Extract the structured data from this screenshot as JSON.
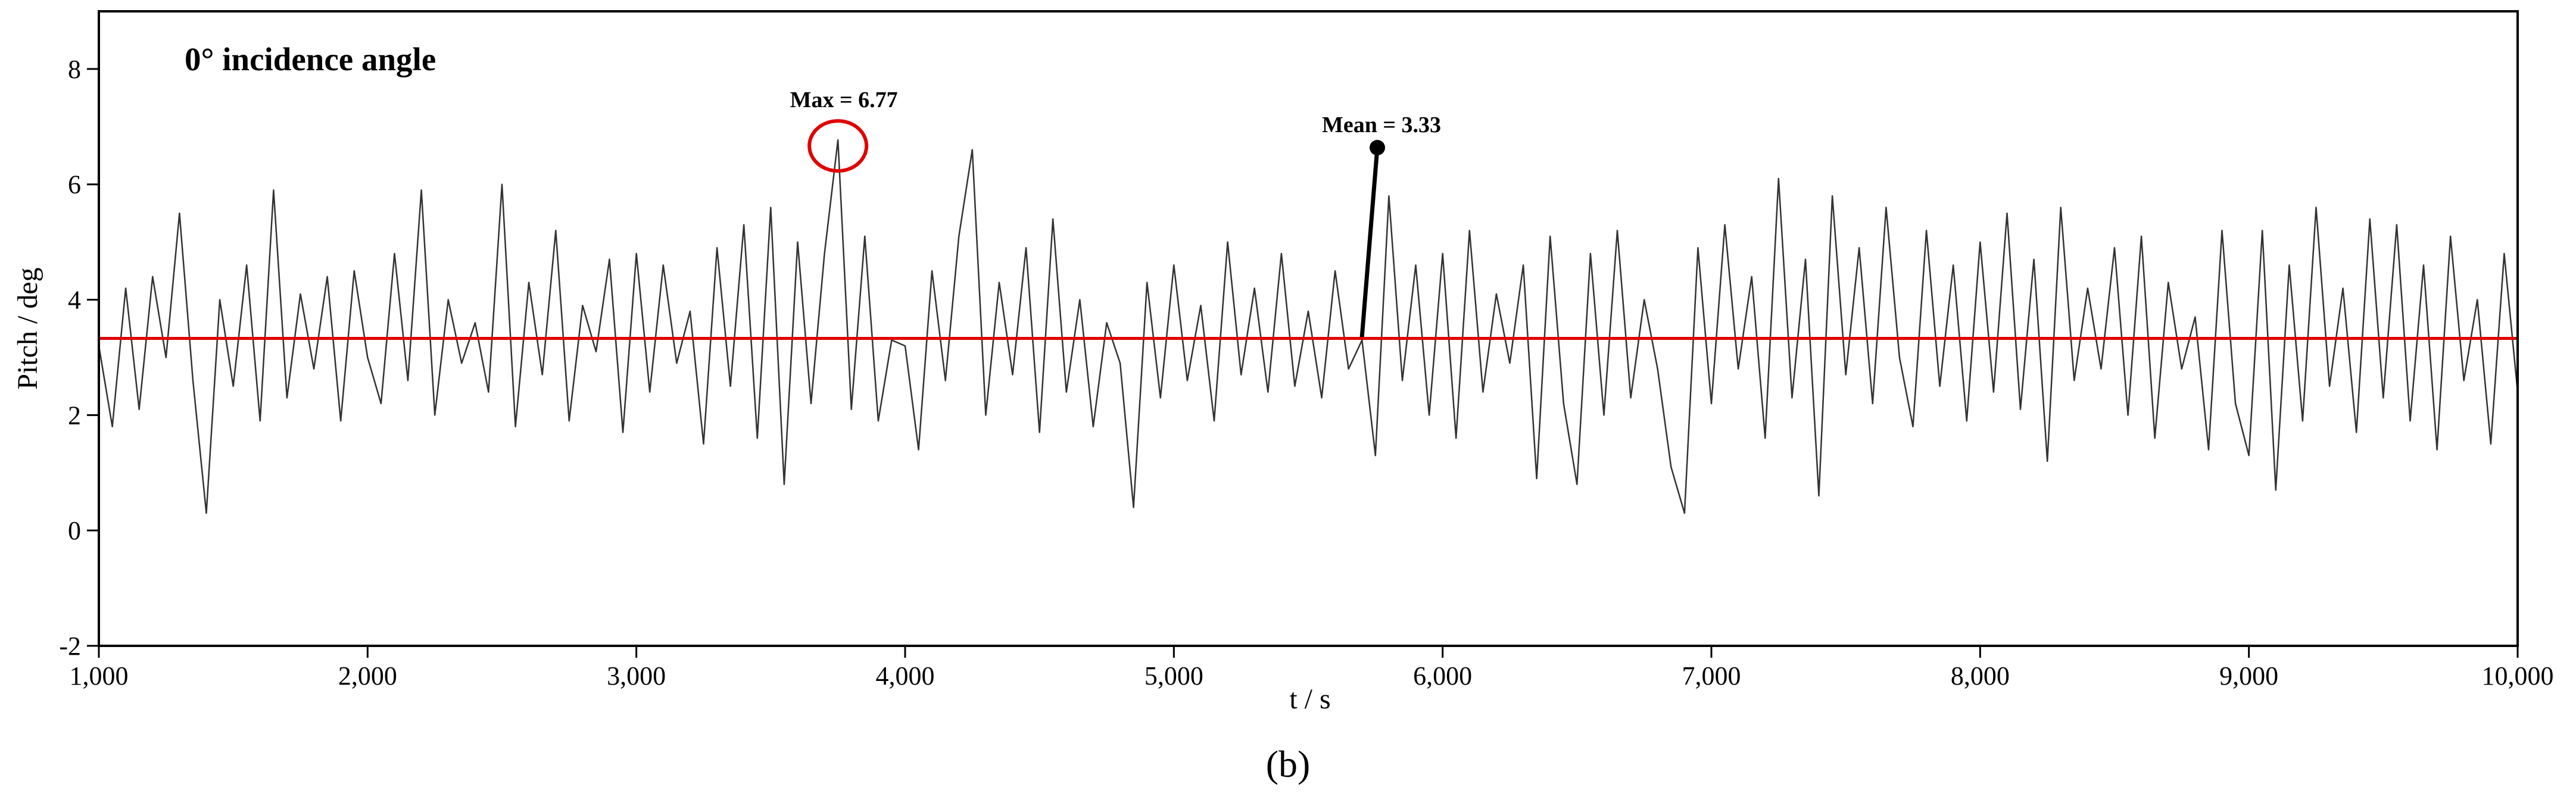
{
  "chart_data": {
    "type": "line",
    "title": "0° incidence angle",
    "caption": "(b)",
    "xlabel": "t / s",
    "ylabel": "Pitch / deg",
    "max_label": "Max = 6.77",
    "mean_label": "Mean = 3.33",
    "mean": 3.33,
    "xlim": [
      1000,
      10000
    ],
    "ylim": [
      -2,
      9
    ],
    "yticks": [
      -2,
      0,
      2,
      4,
      6,
      8
    ],
    "xticks": [
      {
        "value": 1000,
        "label": "1,000"
      },
      {
        "value": 2000,
        "label": "2,000"
      },
      {
        "value": 3000,
        "label": "3,000"
      },
      {
        "value": 4000,
        "label": "4,000"
      },
      {
        "value": 5000,
        "label": "5,000"
      },
      {
        "value": 6000,
        "label": "6,000"
      },
      {
        "value": 7000,
        "label": "7,000"
      },
      {
        "value": 8000,
        "label": "8,000"
      },
      {
        "value": 9000,
        "label": "9,000"
      },
      {
        "value": 10000,
        "label": "10,000"
      }
    ],
    "line_color": "#333333",
    "mean_color": "#e00000",
    "x": [
      1000,
      1050,
      1100,
      1150,
      1200,
      1250,
      1300,
      1350,
      1400,
      1450,
      1500,
      1550,
      1600,
      1650,
      1700,
      1750,
      1800,
      1850,
      1900,
      1950,
      2000,
      2050,
      2100,
      2150,
      2200,
      2250,
      2300,
      2350,
      2400,
      2450,
      2500,
      2550,
      2600,
      2650,
      2700,
      2750,
      2800,
      2850,
      2900,
      2950,
      3000,
      3050,
      3100,
      3150,
      3200,
      3250,
      3300,
      3350,
      3400,
      3450,
      3500,
      3550,
      3600,
      3650,
      3700,
      3750,
      3800,
      3850,
      3900,
      3950,
      4000,
      4050,
      4100,
      4150,
      4200,
      4250,
      4300,
      4350,
      4400,
      4450,
      4500,
      4550,
      4600,
      4650,
      4700,
      4750,
      4800,
      4850,
      4900,
      4950,
      5000,
      5050,
      5100,
      5150,
      5200,
      5250,
      5300,
      5350,
      5400,
      5450,
      5500,
      5550,
      5600,
      5650,
      5700,
      5750,
      5800,
      5850,
      5900,
      5950,
      6000,
      6050,
      6100,
      6150,
      6200,
      6250,
      6300,
      6350,
      6400,
      6450,
      6500,
      6550,
      6600,
      6650,
      6700,
      6750,
      6800,
      6850,
      6900,
      6950,
      7000,
      7050,
      7100,
      7150,
      7200,
      7250,
      7300,
      7350,
      7400,
      7450,
      7500,
      7550,
      7600,
      7650,
      7700,
      7750,
      7800,
      7850,
      7900,
      7950,
      8000,
      8050,
      8100,
      8150,
      8200,
      8250,
      8300,
      8350,
      8400,
      8450,
      8500,
      8550,
      8600,
      8650,
      8700,
      8750,
      8800,
      8850,
      8900,
      8950,
      9000,
      9050,
      9100,
      9150,
      9200,
      9250,
      9300,
      9350,
      9400,
      9450,
      9500,
      9550,
      9600,
      9650,
      9700,
      9750,
      9800,
      9850,
      9900,
      9950,
      10000
    ],
    "values": [
      3.2,
      1.8,
      4.2,
      2.1,
      4.4,
      3.0,
      5.5,
      2.6,
      0.3,
      4.0,
      2.5,
      4.6,
      1.9,
      5.9,
      2.3,
      4.1,
      2.8,
      4.4,
      1.9,
      4.5,
      3.0,
      2.2,
      4.8,
      2.6,
      5.9,
      2.0,
      4.0,
      2.9,
      3.6,
      2.4,
      6.0,
      1.8,
      4.3,
      2.7,
      5.2,
      1.9,
      3.9,
      3.1,
      4.7,
      1.7,
      4.8,
      2.4,
      4.6,
      2.9,
      3.8,
      1.5,
      4.9,
      2.5,
      5.3,
      1.6,
      5.6,
      0.8,
      5.0,
      2.2,
      4.8,
      6.77,
      2.1,
      5.1,
      1.9,
      3.3,
      3.2,
      1.4,
      4.5,
      2.6,
      5.1,
      6.6,
      2.0,
      4.3,
      2.7,
      4.9,
      1.7,
      5.4,
      2.4,
      4.0,
      1.8,
      3.6,
      2.9,
      0.4,
      4.3,
      2.3,
      4.6,
      2.6,
      3.9,
      1.9,
      5.0,
      2.7,
      4.2,
      2.4,
      4.8,
      2.5,
      3.8,
      2.3,
      4.5,
      2.8,
      3.3,
      1.3,
      5.8,
      2.6,
      4.6,
      2.0,
      4.8,
      1.6,
      5.2,
      2.4,
      4.1,
      2.9,
      4.6,
      0.9,
      5.1,
      2.2,
      0.8,
      4.8,
      2.0,
      5.2,
      2.3,
      4.0,
      2.8,
      1.1,
      0.3,
      4.9,
      2.2,
      5.3,
      2.8,
      4.4,
      1.6,
      6.1,
      2.3,
      4.7,
      0.6,
      5.8,
      2.7,
      4.9,
      2.2,
      5.6,
      3.0,
      1.8,
      5.2,
      2.5,
      4.6,
      1.9,
      5.0,
      2.4,
      5.5,
      2.1,
      4.7,
      1.2,
      5.6,
      2.6,
      4.2,
      2.8,
      4.9,
      2.0,
      5.1,
      1.6,
      4.3,
      2.8,
      3.7,
      1.4,
      5.2,
      2.2,
      1.3,
      5.2,
      0.7,
      4.6,
      1.9,
      5.6,
      2.5,
      4.2,
      1.7,
      5.4,
      2.3,
      5.3,
      1.9,
      4.6,
      1.4,
      5.1,
      2.6,
      4.0,
      1.5,
      4.8,
      2.4
    ]
  }
}
